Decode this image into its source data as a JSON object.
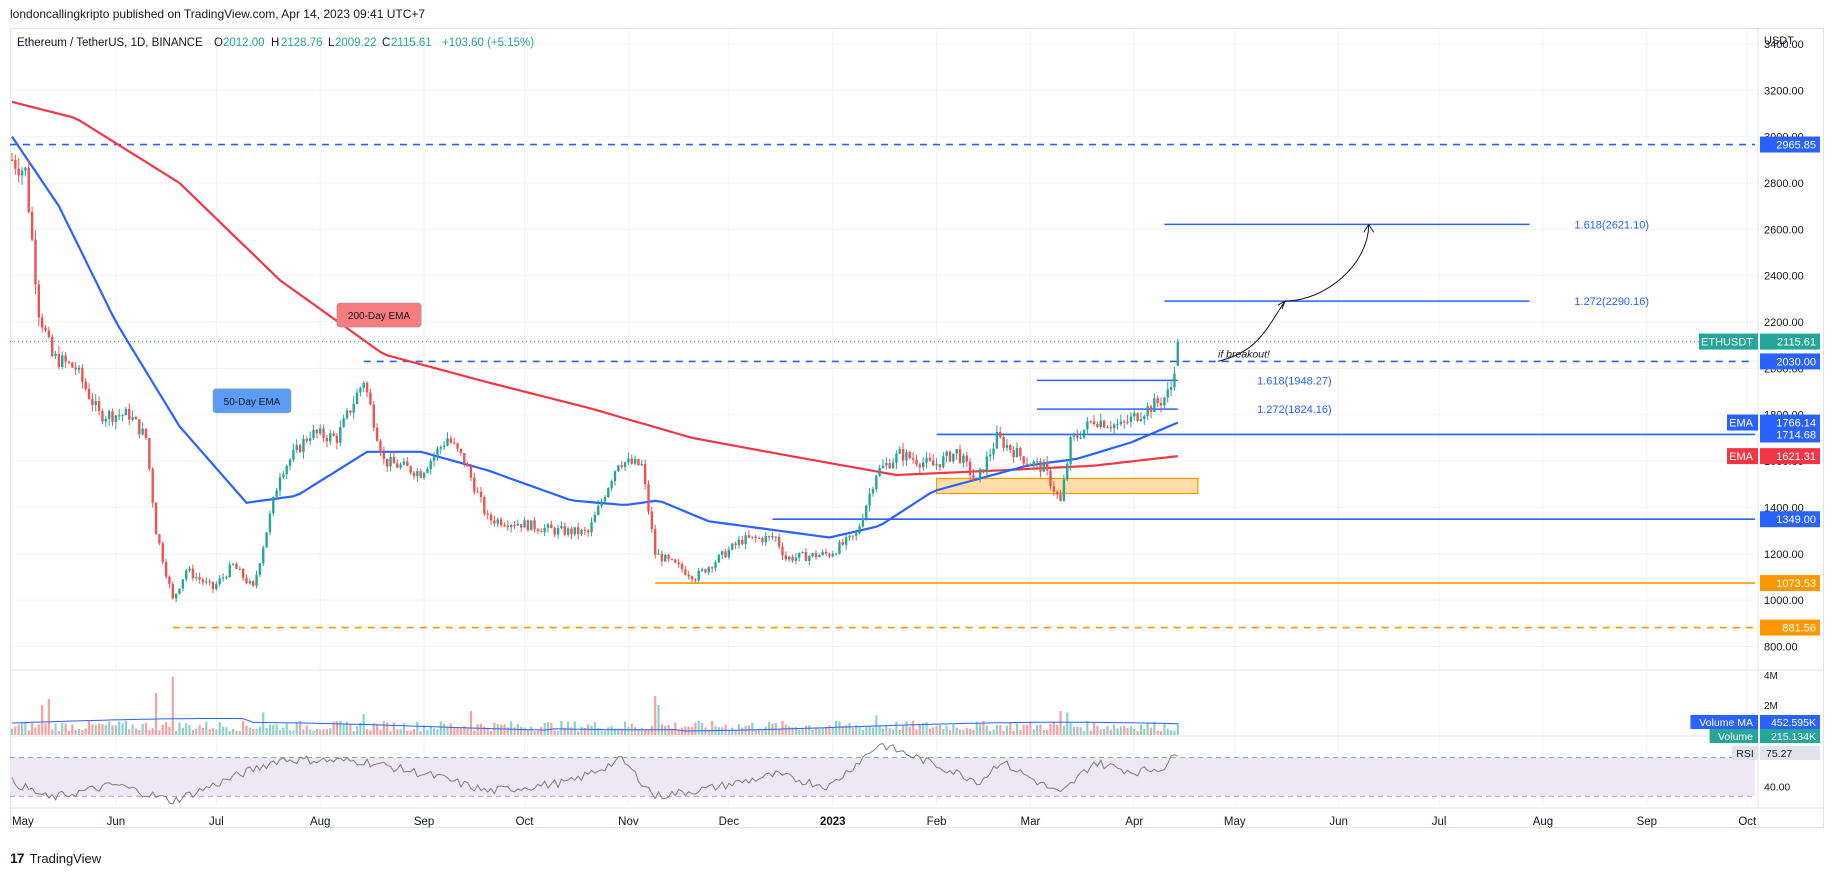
{
  "header": {
    "published_line": "londoncallingkripto published on TradingView.com, Apr 14, 2023 09:41 UTC+7",
    "symbol_line": "Ethereum / TetherUS, 1D, BINANCE",
    "ohlc": {
      "o_label": "O",
      "o": "2012.00",
      "h_label": "H",
      "h": "2128.76",
      "l_label": "L",
      "l": "2009.22",
      "c_label": "C",
      "c": "2115.61",
      "chg": "+103.60 (+5.15%)"
    }
  },
  "footer": {
    "logo": "17",
    "brand": "TradingView"
  },
  "colors": {
    "up": "#26a69a",
    "down": "#ef5350",
    "ema50": "#2962ff",
    "ema200": "#f23645",
    "level": "#2962ff",
    "support_orange": "#ff9800",
    "zone_fill": "#ffd89a",
    "grid": "#f0f3fa",
    "axis_text": "#131722",
    "rsi_band": "#ede7f6",
    "rsi_line": "#7e7e7e"
  },
  "chart_data": [
    {
      "type": "candlestick",
      "name": "ETHUSDT",
      "x_axis": [
        "May",
        "Jun",
        "Jul",
        "Aug",
        "Sep",
        "Oct",
        "Nov",
        "Dec",
        "2023",
        "Feb",
        "Mar",
        "Apr",
        "May",
        "Jun",
        "Jul",
        "Aug",
        "Sep",
        "Oct"
      ],
      "y_axis_unit": "USDT",
      "y_ticks": [
        "3400.00",
        "3200.00",
        "3000.00",
        "2800.00",
        "2600.00",
        "2400.00",
        "2200.00",
        "2000.00",
        "1800.00",
        "1600.00",
        "1400.00",
        "1200.00",
        "1000.00",
        "800.00"
      ],
      "ylim": [
        720,
        3460
      ],
      "price_path": [
        [
          "2022-05-01",
          2900
        ],
        [
          "2022-05-05",
          2850
        ],
        [
          "2022-05-09",
          2250
        ],
        [
          "2022-05-13",
          2050
        ],
        [
          "2022-05-20",
          2000
        ],
        [
          "2022-05-27",
          1800
        ],
        [
          "2022-06-05",
          1800
        ],
        [
          "2022-06-10",
          1700
        ],
        [
          "2022-06-13",
          1300
        ],
        [
          "2022-06-18",
          1000
        ],
        [
          "2022-06-22",
          1130
        ],
        [
          "2022-06-30",
          1050
        ],
        [
          "2022-07-06",
          1150
        ],
        [
          "2022-07-12",
          1050
        ],
        [
          "2022-07-20",
          1550
        ],
        [
          "2022-07-29",
          1720
        ],
        [
          "2022-08-06",
          1700
        ],
        [
          "2022-08-14",
          1950
        ],
        [
          "2022-08-20",
          1600
        ],
        [
          "2022-08-31",
          1550
        ],
        [
          "2022-09-08",
          1700
        ],
        [
          "2022-09-13",
          1600
        ],
        [
          "2022-09-20",
          1350
        ],
        [
          "2022-09-30",
          1330
        ],
        [
          "2022-10-10",
          1300
        ],
        [
          "2022-10-20",
          1290
        ],
        [
          "2022-10-29",
          1600
        ],
        [
          "2022-11-05",
          1580
        ],
        [
          "2022-11-09",
          1200
        ],
        [
          "2022-11-21",
          1100
        ],
        [
          "2022-12-05",
          1260
        ],
        [
          "2022-12-15",
          1270
        ],
        [
          "2022-12-18",
          1180
        ],
        [
          "2022-12-31",
          1200
        ],
        [
          "2023-01-08",
          1280
        ],
        [
          "2023-01-14",
          1550
        ],
        [
          "2023-01-21",
          1630
        ],
        [
          "2023-01-31",
          1580
        ],
        [
          "2023-02-07",
          1640
        ],
        [
          "2023-02-13",
          1510
        ],
        [
          "2023-02-19",
          1700
        ],
        [
          "2023-02-28",
          1600
        ],
        [
          "2023-03-05",
          1570
        ],
        [
          "2023-03-10",
          1420
        ],
        [
          "2023-03-13",
          1680
        ],
        [
          "2023-03-20",
          1780
        ],
        [
          "2023-03-28",
          1750
        ],
        [
          "2023-04-03",
          1810
        ],
        [
          "2023-04-09",
          1860
        ],
        [
          "2023-04-11",
          1890
        ],
        [
          "2023-04-12",
          1920
        ],
        [
          "2023-04-13",
          2012
        ],
        [
          "2023-04-14",
          2115.61
        ]
      ],
      "last_candle": {
        "date": "2023-04-14",
        "open": 2012.0,
        "high": 2128.76,
        "low": 2009.22,
        "close": 2115.61
      },
      "swing_high": {
        "date": "2022-05-05",
        "value": 2965.85
      },
      "swing_low": {
        "date": "2022-06-18",
        "value": 881.56
      },
      "horizontal_levels": [
        {
          "value": 2965.85,
          "label": "2965.85",
          "style": "dashed",
          "color": "#2962ff"
        },
        {
          "value": 2030.0,
          "label": "2030.00",
          "style": "dashed",
          "color": "#2962ff",
          "from": "2022-08-14"
        },
        {
          "value": 1714.68,
          "label": "1714.68",
          "style": "solid",
          "color": "#2962ff",
          "from": "2023-02-01"
        },
        {
          "value": 1349.0,
          "label": "1349.00",
          "style": "solid",
          "color": "#2962ff",
          "from": "2022-12-14"
        },
        {
          "value": 1073.53,
          "label": "1073.53",
          "style": "solid",
          "color": "#ff9800",
          "from": "2022-11-09"
        },
        {
          "value": 881.56,
          "label": "881.56",
          "style": "dashed",
          "color": "#ff9800",
          "from": "2022-06-18"
        }
      ],
      "fib_levels": [
        {
          "label": "1.618(2621.10)",
          "value": 2621.1,
          "from": "2023-04-10",
          "to": "2023-07-28"
        },
        {
          "label": "1.272(2290.16)",
          "value": 2290.16,
          "from": "2023-04-10",
          "to": "2023-07-28"
        },
        {
          "label": "1.618(1948.27)",
          "value": 1948.27,
          "from": "2023-03-03",
          "to": "2023-04-14"
        },
        {
          "label": "1.272(1824.16)",
          "value": 1824.16,
          "from": "2023-03-03",
          "to": "2023-04-14"
        }
      ],
      "demand_zone": {
        "from": "2023-02-01",
        "to": "2023-04-20",
        "low": 1460,
        "high": 1525
      },
      "annotations": [
        {
          "text": "200-Day EMA",
          "date": "2022-08-06",
          "value": 2230,
          "color": "#f77c80"
        },
        {
          "text": "50-Day EMA",
          "date": "2022-06-30",
          "value": 1860,
          "color": "#5b9cf6"
        },
        {
          "text": "if breakout!",
          "date": "2023-04-26",
          "value": 2065
        }
      ],
      "price_tags": [
        {
          "name": "ETHUSDT",
          "value": "2115.61",
          "price": 2115.61,
          "color": "#26a69a"
        },
        {
          "name": "EMA",
          "value": "1766.14",
          "price": 1766.14,
          "color": "#2962ff"
        },
        {
          "name": "EMA",
          "value": "1621.31",
          "price": 1621.31,
          "color": "#f23645"
        }
      ],
      "ema50_path": [
        [
          "2022-05-01",
          3000
        ],
        [
          "2022-05-15",
          2700
        ],
        [
          "2022-06-01",
          2200
        ],
        [
          "2022-06-20",
          1750
        ],
        [
          "2022-07-10",
          1420
        ],
        [
          "2022-07-25",
          1450
        ],
        [
          "2022-08-15",
          1640
        ],
        [
          "2022-08-31",
          1640
        ],
        [
          "2022-09-20",
          1560
        ],
        [
          "2022-10-15",
          1430
        ],
        [
          "2022-10-31",
          1410
        ],
        [
          "2022-11-10",
          1430
        ],
        [
          "2022-11-25",
          1340
        ],
        [
          "2022-12-31",
          1270
        ],
        [
          "2023-01-15",
          1320
        ],
        [
          "2023-01-31",
          1470
        ],
        [
          "2023-02-28",
          1580
        ],
        [
          "2023-03-15",
          1610
        ],
        [
          "2023-03-31",
          1680
        ],
        [
          "2023-04-14",
          1766.14
        ]
      ],
      "ema200_path": [
        [
          "2022-05-01",
          3150
        ],
        [
          "2022-05-20",
          3080
        ],
        [
          "2022-06-20",
          2800
        ],
        [
          "2022-07-20",
          2380
        ],
        [
          "2022-08-20",
          2060
        ],
        [
          "2022-09-20",
          1940
        ],
        [
          "2022-10-20",
          1830
        ],
        [
          "2022-11-20",
          1700
        ],
        [
          "2022-12-20",
          1620
        ],
        [
          "2023-01-20",
          1540
        ],
        [
          "2023-02-20",
          1560
        ],
        [
          "2023-03-20",
          1580
        ],
        [
          "2023-04-14",
          1621.31
        ]
      ]
    },
    {
      "type": "bar",
      "name": "Volume",
      "y_ticks": [
        "4M",
        "2M"
      ],
      "ylim": [
        0,
        4.2
      ],
      "legend": [
        {
          "name": "Volume MA",
          "value": "452.595K",
          "color": "#2962ff"
        },
        {
          "name": "Volume",
          "value": "215.134K",
          "color": "#26a69a"
        }
      ],
      "spikes": [
        [
          "2022-05-10",
          2.0
        ],
        [
          "2022-05-12",
          2.4
        ],
        [
          "2022-06-13",
          2.8
        ],
        [
          "2022-06-18",
          3.9
        ],
        [
          "2022-07-15",
          1.5
        ],
        [
          "2022-08-14",
          1.4
        ],
        [
          "2022-09-15",
          1.6
        ],
        [
          "2022-11-09",
          2.6
        ],
        [
          "2022-11-10",
          2.0
        ],
        [
          "2023-01-14",
          1.3
        ],
        [
          "2023-03-10",
          1.6
        ],
        [
          "2023-03-12",
          1.5
        ]
      ]
    },
    {
      "type": "line",
      "name": "RSI",
      "value": "75.27",
      "y_ticks": [
        "40.00"
      ],
      "band": [
        30,
        70
      ],
      "ylim": [
        20,
        90
      ],
      "path": [
        [
          "2022-05-01",
          45
        ],
        [
          "2022-05-12",
          28
        ],
        [
          "2022-06-01",
          42
        ],
        [
          "2022-06-18",
          25
        ],
        [
          "2022-07-10",
          55
        ],
        [
          "2022-07-20",
          68
        ],
        [
          "2022-08-14",
          66
        ],
        [
          "2022-09-05",
          50
        ],
        [
          "2022-09-20",
          35
        ],
        [
          "2022-10-15",
          45
        ],
        [
          "2022-10-30",
          68
        ],
        [
          "2022-11-09",
          30
        ],
        [
          "2022-11-25",
          38
        ],
        [
          "2022-12-15",
          52
        ],
        [
          "2022-12-31",
          40
        ],
        [
          "2023-01-15",
          84
        ],
        [
          "2023-02-01",
          62
        ],
        [
          "2023-02-14",
          45
        ],
        [
          "2023-02-20",
          66
        ],
        [
          "2023-03-10",
          32
        ],
        [
          "2023-03-20",
          65
        ],
        [
          "2023-04-01",
          55
        ],
        [
          "2023-04-10",
          60
        ],
        [
          "2023-04-14",
          75.27
        ]
      ]
    }
  ]
}
